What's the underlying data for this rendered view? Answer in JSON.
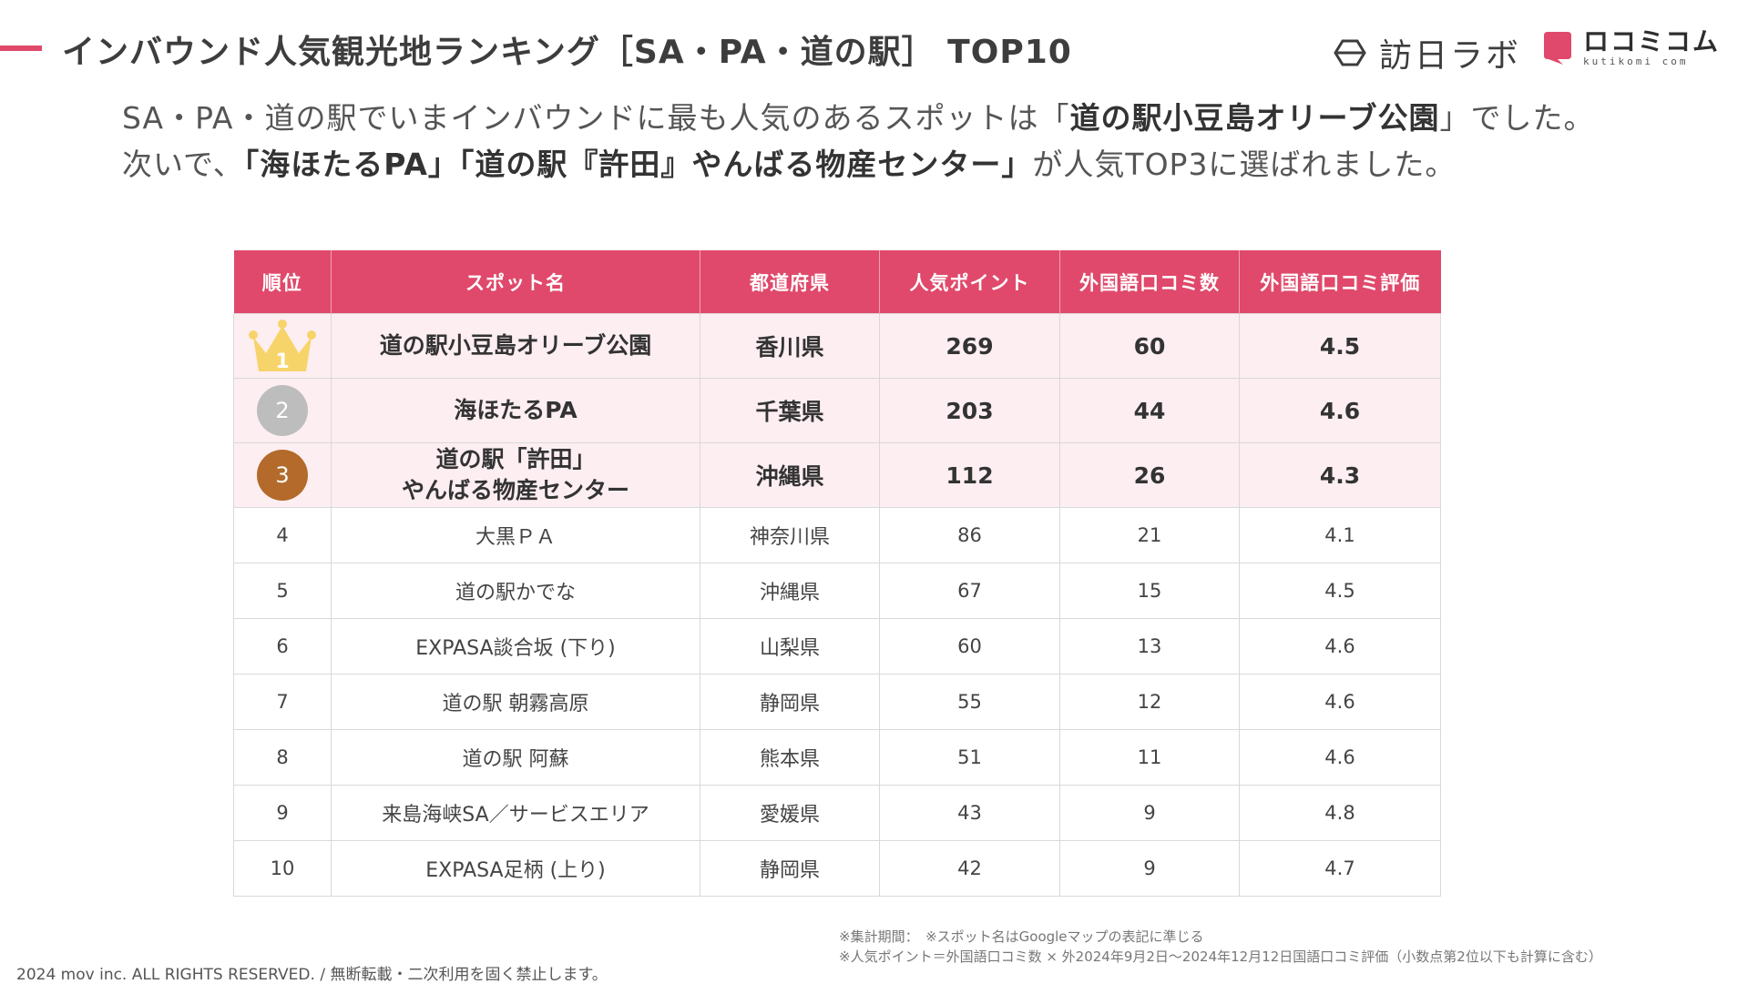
{
  "header": {
    "title": "インバウンド人気観光地ランキング［SA・PA・道の駅］ TOP10",
    "brand_houbi": "訪日ラボ",
    "brand_kuchi_main": "ロコミコム",
    "brand_kuchi_sub": "kutikomi com",
    "accent_color": "#e0496b"
  },
  "intro": {
    "p1": "SA・PA・道の駅でいまインバウンドに最も人気のあるスポットは「",
    "b1": "道の駅小豆島オリーブ公園",
    "p2": "」でした。次いで、",
    "b2": "「海ほたるPA」「道の駅『許田』やんばる物産センター」",
    "p3": "が人気TOP3に選ばれました。"
  },
  "table": {
    "headers": [
      "順位",
      "スポット名",
      "都道府県",
      "人気ポイント",
      "外国語口コミ数",
      "外国語口コミ評価"
    ],
    "rows": [
      {
        "rank": "1",
        "spot": "道の駅小豆島オリーブ公園",
        "pref": "香川県",
        "points": "269",
        "reviews": "60",
        "rating": "4.5"
      },
      {
        "rank": "2",
        "spot": "海ほたるPA",
        "pref": "千葉県",
        "points": "203",
        "reviews": "44",
        "rating": "4.6"
      },
      {
        "rank": "3",
        "spot_l1": "道の駅「許田」",
        "spot_l2": "やんばる物産センター",
        "pref": "沖縄県",
        "points": "112",
        "reviews": "26",
        "rating": "4.3"
      },
      {
        "rank": "4",
        "spot": "大黒ＰＡ",
        "pref": "神奈川県",
        "points": "86",
        "reviews": "21",
        "rating": "4.1"
      },
      {
        "rank": "5",
        "spot": "道の駅かでな",
        "pref": "沖縄県",
        "points": "67",
        "reviews": "15",
        "rating": "4.5"
      },
      {
        "rank": "6",
        "spot": "EXPASA談合坂 (下り)",
        "pref": "山梨県",
        "points": "60",
        "reviews": "13",
        "rating": "4.6"
      },
      {
        "rank": "7",
        "spot": "道の駅 朝霧高原",
        "pref": "静岡県",
        "points": "55",
        "reviews": "12",
        "rating": "4.6"
      },
      {
        "rank": "8",
        "spot": "道の駅 阿蘇",
        "pref": "熊本県",
        "points": "51",
        "reviews": "11",
        "rating": "4.6"
      },
      {
        "rank": "9",
        "spot": "来島海峡SA／サービスエリア",
        "pref": "愛媛県",
        "points": "43",
        "reviews": "9",
        "rating": "4.8"
      },
      {
        "rank": "10",
        "spot": "EXPASA足柄 (上り)",
        "pref": "静岡県",
        "points": "42",
        "reviews": "9",
        "rating": "4.7"
      }
    ]
  },
  "footnote": {
    "line1": "※集計期間：　※スポット名はGoogleマップの表記に準じる",
    "line2": "※人気ポイント＝外国語口コミ数 × 外2024年9月2日〜2024年12月12日国語口コミ評価（小数点第2位以下も計算に含む）"
  },
  "copyright": "2024 mov inc. ALL RIGHTS RESERVED. / 無断転載・二次利用を固く禁止します。"
}
